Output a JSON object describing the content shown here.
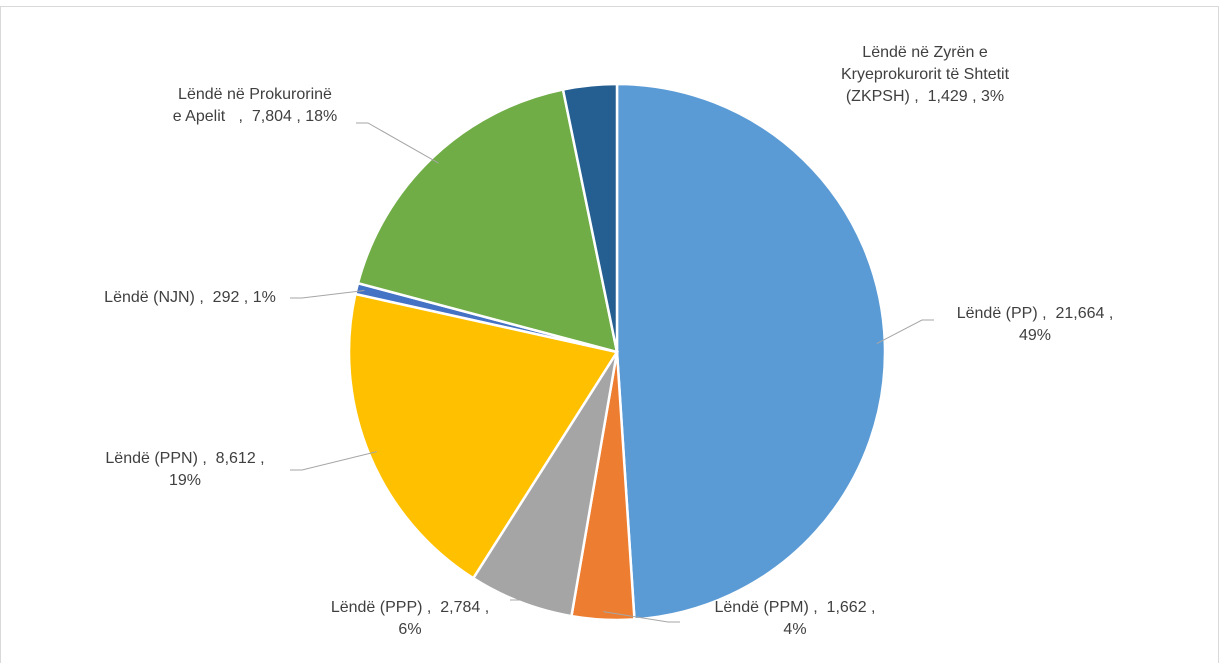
{
  "chart_data": {
    "type": "pie",
    "categories": [
      "Lëndë (PP)",
      "Lëndë (PPM)",
      "Lëndë (PPP)",
      "Lëndë (PPN)",
      "Lëndë (NJN)",
      "Lëndë në Prokurorinë e Apelit",
      "Lëndë në Zyrën e Kryeprokurorit të Shtetit (ZKPSH)"
    ],
    "values": [
      21664,
      1662,
      2784,
      8612,
      292,
      7804,
      1429
    ],
    "value_labels": [
      "Lëndë (PP) ,  21,664 ,\n49%",
      "Lëndë (PPM) ,  1,662 ,\n4%",
      "Lëndë (PPP) ,  2,784 ,\n6%",
      "Lëndë (PPN) ,  8,612 ,\n19%",
      "Lëndë (NJN) ,  292 , 1%",
      "Lëndë në Prokurorinë\ne Apelit   ,  7,804 , 18%",
      "Lëndë në Zyrën e\nKryeprokurorit të Shtetit\n(ZKPSH) ,  1,429 , 3%"
    ],
    "colors": [
      "#5b9bd5",
      "#ed7d31",
      "#a5a5a5",
      "#ffc000",
      "#4472c4",
      "#70ad47",
      "#255e91"
    ]
  }
}
